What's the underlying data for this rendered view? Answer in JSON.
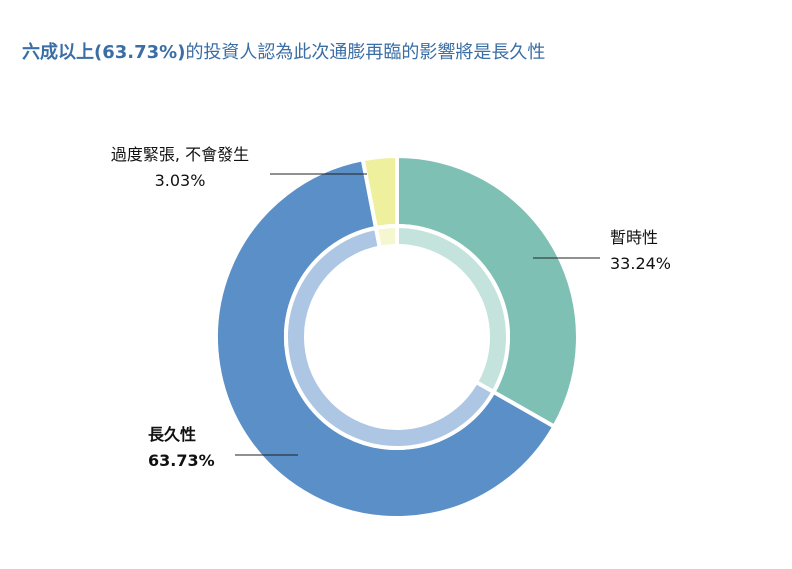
{
  "chart_data": {
    "type": "pie",
    "title_parts": [
      "六成以上(63.73%)",
      "的投資人認為此次通膨再臨的影響將是長久性"
    ],
    "categories": [
      "暫時性",
      "長久性",
      "過度緊張, 不會發生"
    ],
    "values": [
      33.24,
      63.73,
      3.03
    ],
    "value_labels": [
      "33.24%",
      "63.73%",
      "3.03%"
    ],
    "colors": [
      "#7fc0b5",
      "#5b8fc7",
      "#eef09e"
    ],
    "inner_colors": [
      "#c4e3dd",
      "#adc6e4",
      "#f5f7cf"
    ]
  }
}
